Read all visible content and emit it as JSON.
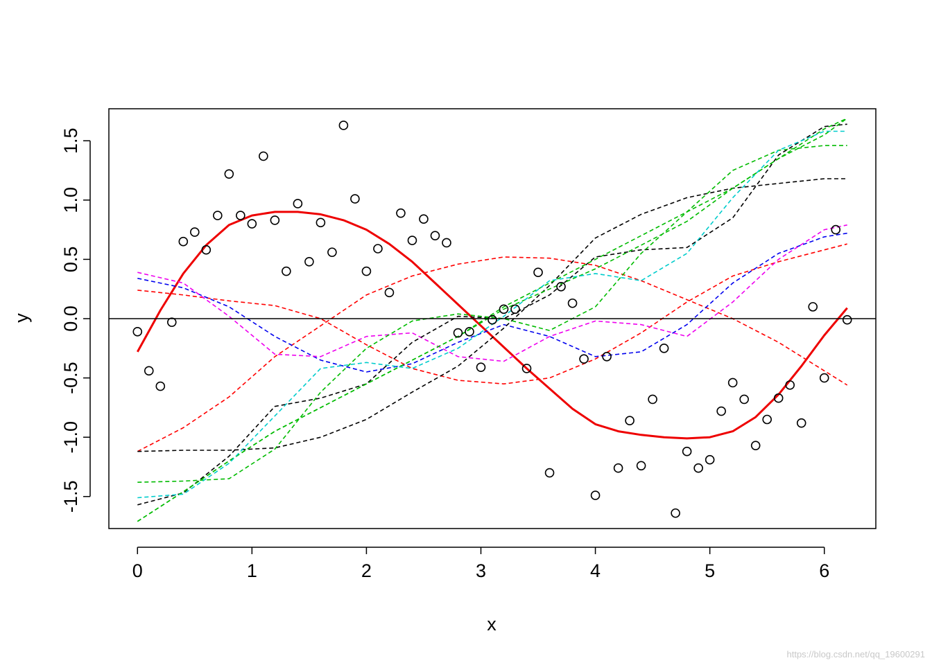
{
  "chart_data": {
    "type": "scatter",
    "title": "",
    "xlabel": "x",
    "ylabel": "y",
    "xlim": [
      -0.25,
      6.45
    ],
    "ylim": [
      -1.77,
      1.77
    ],
    "xticks": [
      "0",
      "1",
      "2",
      "3",
      "4",
      "5",
      "6"
    ],
    "yticks": [
      "-1.5",
      "-1.0",
      "-0.5",
      "0.0",
      "0.5",
      "1.0",
      "1.5"
    ],
    "grid": false,
    "legend": "none",
    "hline_y": 0,
    "points": {
      "x": [
        0.0,
        0.1,
        0.2,
        0.3,
        0.4,
        0.5,
        0.6,
        0.7,
        0.8,
        0.9,
        1.0,
        1.1,
        1.2,
        1.3,
        1.4,
        1.5,
        1.6,
        1.7,
        1.8,
        1.9,
        2.0,
        2.1,
        2.2,
        2.3,
        2.4,
        2.5,
        2.6,
        2.7,
        2.8,
        2.9,
        3.0,
        3.1,
        3.2,
        3.3,
        3.4,
        3.5,
        3.6,
        3.7,
        3.8,
        3.9,
        4.0,
        4.1,
        4.2,
        4.3,
        4.4,
        4.5,
        4.6,
        4.7,
        4.8,
        4.9,
        5.0,
        5.1,
        5.2,
        5.3,
        5.4,
        5.5,
        5.6,
        5.7,
        5.8,
        5.9,
        6.0,
        6.1,
        6.2
      ],
      "y": [
        -0.11,
        -0.44,
        -0.57,
        -0.03,
        0.65,
        0.73,
        0.58,
        0.87,
        1.22,
        0.87,
        0.8,
        1.37,
        0.83,
        0.4,
        0.97,
        0.48,
        0.81,
        0.56,
        1.63,
        1.01,
        0.4,
        0.59,
        0.22,
        0.89,
        0.66,
        0.84,
        0.7,
        0.64,
        -0.12,
        -0.11,
        -0.41,
        -0.01,
        0.08,
        0.08,
        -0.42,
        0.39,
        -1.3,
        0.27,
        0.13,
        -0.34,
        -1.49,
        -0.32,
        -1.26,
        -0.86,
        -1.24,
        -0.68,
        -0.25,
        -1.64,
        -1.12,
        -1.26,
        -1.19,
        -0.78,
        -0.54,
        -0.68,
        -1.07,
        -0.85,
        -0.67,
        -0.56,
        -0.88,
        0.1,
        -0.5,
        0.75,
        -0.01
      ]
    },
    "curves": [
      {
        "style": "solid",
        "color": "#ee0000",
        "width": 3,
        "x": [
          0,
          0.2,
          0.4,
          0.6,
          0.8,
          1.0,
          1.2,
          1.4,
          1.6,
          1.8,
          2.0,
          2.2,
          2.4,
          2.6,
          2.8,
          3.0,
          3.2,
          3.4,
          3.6,
          3.8,
          4.0,
          4.2,
          4.4,
          4.6,
          4.8,
          5.0,
          5.2,
          5.4,
          5.6,
          5.8,
          6.0,
          6.2
        ],
        "y": [
          -0.28,
          0.07,
          0.38,
          0.62,
          0.79,
          0.87,
          0.9,
          0.9,
          0.88,
          0.83,
          0.75,
          0.63,
          0.48,
          0.3,
          0.12,
          -0.06,
          -0.24,
          -0.42,
          -0.59,
          -0.76,
          -0.89,
          -0.95,
          -0.98,
          -1.0,
          -1.01,
          -1.0,
          -0.95,
          -0.83,
          -0.64,
          -0.4,
          -0.14,
          0.09
        ]
      },
      {
        "style": "dashed",
        "color": "#ff0000",
        "x": [
          0,
          0.4,
          0.8,
          1.2,
          1.6,
          2.0,
          2.4,
          2.8,
          3.2,
          3.6,
          4.0,
          4.4,
          4.8,
          5.2,
          5.6,
          6.0,
          6.2
        ],
        "y": [
          -1.12,
          -0.92,
          -0.66,
          -0.32,
          -0.06,
          0.2,
          0.36,
          0.46,
          0.52,
          0.51,
          0.45,
          0.32,
          0.16,
          0.0,
          -0.2,
          -0.44,
          -0.56
        ]
      },
      {
        "style": "dashed",
        "color": "#ff0000",
        "x": [
          0,
          0.4,
          0.8,
          1.2,
          1.6,
          2.0,
          2.4,
          2.8,
          3.2,
          3.6,
          4.0,
          4.4,
          4.8,
          5.2,
          5.6,
          6.0,
          6.2
        ],
        "y": [
          0.24,
          0.2,
          0.15,
          0.11,
          0.0,
          -0.22,
          -0.42,
          -0.52,
          -0.55,
          -0.5,
          -0.34,
          -0.12,
          0.14,
          0.36,
          0.48,
          0.58,
          0.63
        ]
      },
      {
        "style": "dashed",
        "color": "#0000ee",
        "x": [
          0,
          0.4,
          0.8,
          1.2,
          1.6,
          2.0,
          2.4,
          2.8,
          3.2,
          3.6,
          4.0,
          4.4,
          4.8,
          5.2,
          5.6,
          6.0,
          6.2
        ],
        "y": [
          0.34,
          0.26,
          0.1,
          -0.15,
          -0.35,
          -0.45,
          -0.38,
          -0.2,
          -0.05,
          -0.15,
          -0.32,
          -0.28,
          -0.05,
          0.3,
          0.55,
          0.69,
          0.72
        ]
      },
      {
        "style": "dashed",
        "color": "#ee00ee",
        "x": [
          0,
          0.4,
          0.8,
          1.2,
          1.6,
          2.0,
          2.4,
          2.8,
          3.2,
          3.6,
          4.0,
          4.4,
          4.8,
          5.2,
          5.6,
          6.0,
          6.2
        ],
        "y": [
          0.39,
          0.3,
          0.02,
          -0.3,
          -0.32,
          -0.15,
          -0.12,
          -0.32,
          -0.36,
          -0.15,
          -0.02,
          -0.05,
          -0.15,
          0.14,
          0.5,
          0.75,
          0.79
        ]
      },
      {
        "style": "dashed",
        "color": "#000000",
        "x": [
          0,
          0.4,
          0.8,
          1.2,
          1.6,
          2.0,
          2.4,
          2.8,
          3.2,
          3.6,
          4.0,
          4.4,
          4.8,
          5.2,
          5.6,
          6.0,
          6.2
        ],
        "y": [
          -1.12,
          -1.11,
          -1.11,
          -1.09,
          -1.0,
          -0.85,
          -0.62,
          -0.4,
          -0.08,
          0.28,
          0.68,
          0.88,
          1.02,
          1.1,
          1.14,
          1.18,
          1.18
        ]
      },
      {
        "style": "dashed",
        "color": "#000000",
        "x": [
          0,
          0.4,
          0.8,
          1.2,
          1.6,
          2.0,
          2.4,
          2.8,
          3.2,
          3.6,
          4.0,
          4.4,
          4.8,
          5.2,
          5.6,
          6.0,
          6.2
        ],
        "y": [
          -1.57,
          -1.47,
          -1.16,
          -0.74,
          -0.67,
          -0.55,
          -0.2,
          0.02,
          0.0,
          0.2,
          0.52,
          0.58,
          0.6,
          0.85,
          1.38,
          1.62,
          1.64
        ]
      },
      {
        "style": "dashed",
        "color": "#00bb00",
        "x": [
          0,
          0.4,
          0.8,
          1.2,
          1.6,
          2.0,
          2.4,
          2.8,
          3.2,
          3.6,
          4.0,
          4.4,
          4.8,
          5.2,
          5.6,
          6.0,
          6.2
        ],
        "y": [
          -1.38,
          -1.37,
          -1.35,
          -1.1,
          -0.62,
          -0.25,
          -0.02,
          0.04,
          0.0,
          -0.1,
          0.1,
          0.55,
          0.9,
          1.25,
          1.42,
          1.46,
          1.46
        ]
      },
      {
        "style": "dashed",
        "color": "#00bb00",
        "x": [
          0,
          0.4,
          0.8,
          1.2,
          1.6,
          2.0,
          2.4,
          2.8,
          3.2,
          3.6,
          4.0,
          4.4,
          4.8,
          5.2,
          5.6,
          6.0,
          6.2
        ],
        "y": [
          -1.71,
          -1.46,
          -1.2,
          -0.95,
          -0.75,
          -0.55,
          -0.35,
          -0.15,
          0.1,
          0.3,
          0.5,
          0.7,
          0.9,
          1.1,
          1.35,
          1.55,
          1.69
        ]
      },
      {
        "style": "dashed",
        "color": "#00bb00",
        "x": [
          0,
          0.4,
          0.8,
          1.2,
          1.6,
          2.0,
          2.4,
          2.8,
          3.2,
          3.6,
          4.0,
          4.4,
          4.8,
          5.2,
          5.6,
          6.0,
          6.2
        ],
        "y": [
          -1.71,
          -1.46,
          -1.2,
          -0.95,
          -0.75,
          -0.55,
          -0.35,
          -0.15,
          0.08,
          0.25,
          0.42,
          0.62,
          0.82,
          1.1,
          1.35,
          1.6,
          1.69
        ]
      },
      {
        "style": "dashed",
        "color": "#00cccc",
        "x": [
          0,
          0.4,
          0.8,
          1.2,
          1.6,
          2.0,
          2.4,
          2.8,
          3.2,
          3.6,
          4.0,
          4.4,
          4.8,
          5.2,
          5.6,
          6.0,
          6.2
        ],
        "y": [
          -1.51,
          -1.48,
          -1.22,
          -0.82,
          -0.42,
          -0.37,
          -0.42,
          -0.25,
          0.02,
          0.32,
          0.38,
          0.32,
          0.55,
          1.02,
          1.42,
          1.58,
          1.58
        ]
      }
    ]
  },
  "watermark": "https://blog.csdn.net/qq_19600291"
}
